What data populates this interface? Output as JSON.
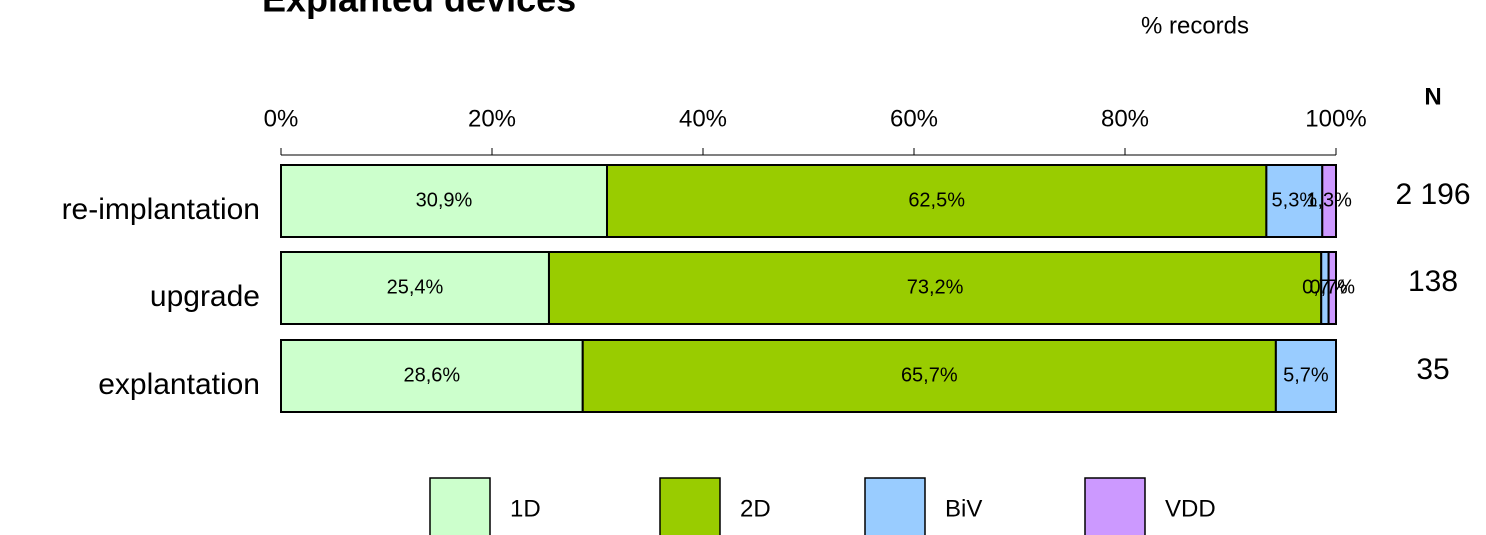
{
  "chart_data": {
    "type": "stacked_barh",
    "title": "Explanted devices",
    "axis_label": "% records",
    "n_header": "N",
    "n_labels": [
      "2 196",
      "138",
      "35"
    ],
    "categories": [
      "re-implantation",
      "upgrade",
      "explantation"
    ],
    "series": [
      {
        "name": "1D",
        "color": "#ccffcc",
        "values": [
          30.9,
          25.4,
          28.6
        ],
        "value_labels": [
          "30,9%",
          "25,4%",
          "28,6%"
        ]
      },
      {
        "name": "2D",
        "color": "#99cc00",
        "values": [
          62.5,
          73.2,
          65.7
        ],
        "value_labels": [
          "62,5%",
          "73,2%",
          "65,7%"
        ]
      },
      {
        "name": "BiV",
        "color": "#99ccff",
        "values": [
          5.3,
          0.7,
          5.7
        ],
        "value_labels": [
          "5,3%",
          "0,7%",
          "5,7%"
        ]
      },
      {
        "name": "VDD",
        "color": "#cc99ff",
        "values": [
          1.3,
          0.7,
          0
        ],
        "value_labels": [
          "1,3%",
          "0,7%",
          null
        ]
      }
    ],
    "xlim": [
      0,
      100
    ],
    "xticks": [
      {
        "value": 0,
        "label": "0%"
      },
      {
        "value": 20,
        "label": "20%"
      },
      {
        "value": 40,
        "label": "40%"
      },
      {
        "value": 60,
        "label": "60%"
      },
      {
        "value": 80,
        "label": "80%"
      },
      {
        "value": 100,
        "label": "100%"
      }
    ],
    "legend": "bottom"
  }
}
